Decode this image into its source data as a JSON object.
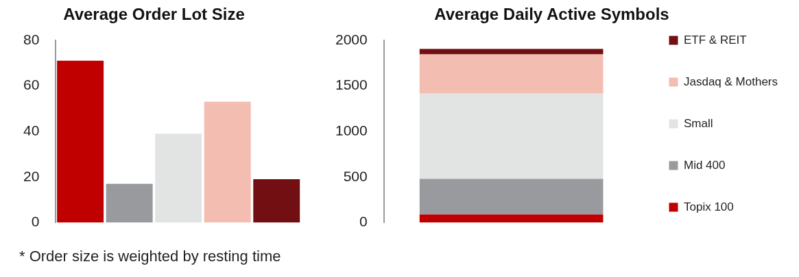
{
  "chart_data": [
    {
      "type": "bar",
      "title": "Average Order Lot Size",
      "categories": [
        null,
        null,
        null,
        null,
        null
      ],
      "values": [
        71,
        17,
        39,
        53,
        19
      ],
      "colors": [
        "#c00000",
        "#989a9e",
        "#e1e4e3",
        "#f4bdb2",
        "#720f13"
      ],
      "ylim": [
        0,
        80
      ],
      "yticks": [
        0,
        20,
        40,
        60,
        80
      ],
      "grid": false,
      "legend": false,
      "annotations": [
        "* Order size is weighted by resting time"
      ]
    },
    {
      "type": "bar",
      "title": "Average Daily Active Symbols",
      "categories": [
        null
      ],
      "stacked": true,
      "legend": "right",
      "grid": false,
      "ylim": [
        0,
        2000
      ],
      "yticks": [
        0,
        500,
        1000,
        1500,
        2000
      ],
      "series": [
        {
          "name": "Topix 100",
          "color": "#c00000",
          "values": [
            90
          ]
        },
        {
          "name": "Mid 400",
          "color": "#989a9e",
          "values": [
            390
          ]
        },
        {
          "name": "Small",
          "color": "#e1e4e3",
          "values": [
            935
          ]
        },
        {
          "name": "Jasdaq & Mothers",
          "color": "#f4bdb2",
          "values": [
            430
          ]
        },
        {
          "name": "ETF & REIT",
          "color": "#720f13",
          "values": [
            60
          ]
        }
      ]
    }
  ]
}
